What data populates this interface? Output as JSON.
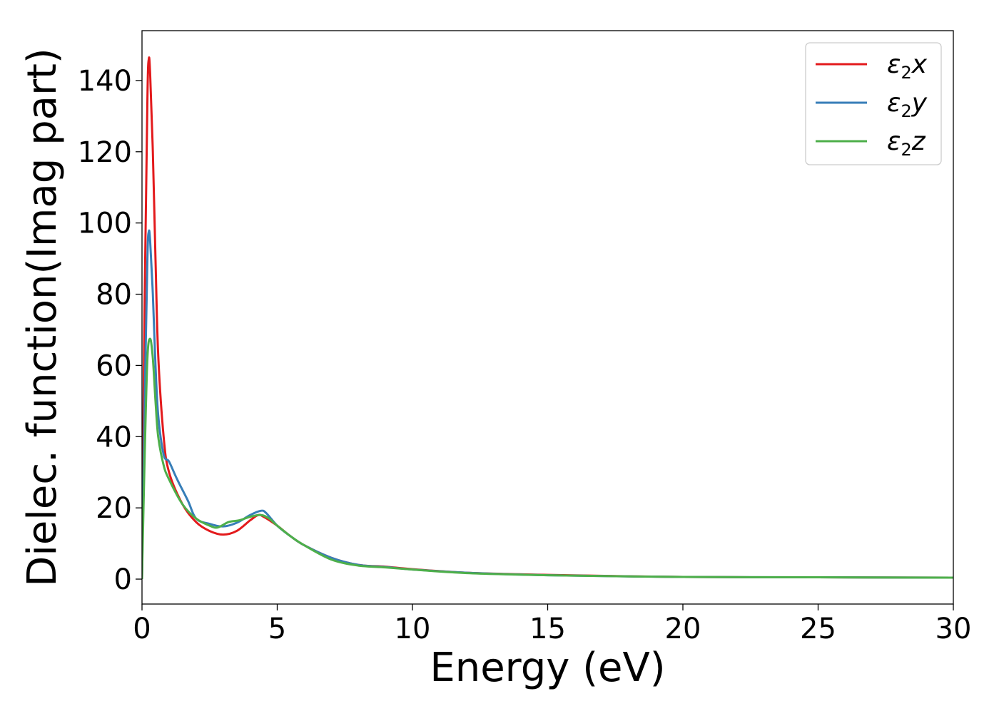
{
  "chart_data": {
    "type": "line",
    "title": "",
    "xlabel": "Energy (eV)",
    "ylabel": "Dielec. function(Imag part)",
    "xlim": [
      0,
      30
    ],
    "ylim": [
      -7,
      154
    ],
    "xticks": [
      0,
      5,
      10,
      15,
      20,
      25,
      30
    ],
    "xtick_labels": [
      "0",
      "5",
      "10",
      "15",
      "20",
      "25",
      "30"
    ],
    "yticks": [
      0,
      20,
      40,
      60,
      80,
      100,
      120,
      140
    ],
    "ytick_labels": [
      "0",
      "20",
      "40",
      "60",
      "80",
      "100",
      "120",
      "140"
    ],
    "grid": false,
    "legend_position": "top-right",
    "series": [
      {
        "name": "ε2x",
        "symbol": "ε",
        "subscript": "2",
        "axis": "x",
        "color": "#e31a1c",
        "points": [
          [
            0,
            0
          ],
          [
            0.1,
            80
          ],
          [
            0.2,
            135
          ],
          [
            0.25,
            146
          ],
          [
            0.3,
            142
          ],
          [
            0.4,
            120
          ],
          [
            0.5,
            90
          ],
          [
            0.6,
            63
          ],
          [
            0.8,
            40
          ],
          [
            1.0,
            30
          ],
          [
            1.5,
            21
          ],
          [
            2.0,
            16
          ],
          [
            2.5,
            13.5
          ],
          [
            3.0,
            12.5
          ],
          [
            3.5,
            13.5
          ],
          [
            4.0,
            16.5
          ],
          [
            4.3,
            18
          ],
          [
            4.5,
            17.5
          ],
          [
            5.0,
            15
          ],
          [
            5.5,
            12
          ],
          [
            6.0,
            9.5
          ],
          [
            7.0,
            6
          ],
          [
            8.0,
            4
          ],
          [
            9.0,
            3.5
          ],
          [
            10.0,
            2.8
          ],
          [
            12.0,
            1.8
          ],
          [
            15.0,
            1.2
          ],
          [
            20.0,
            0.6
          ],
          [
            25.0,
            0.5
          ],
          [
            30.0,
            0.4
          ]
        ]
      },
      {
        "name": "ε2y",
        "symbol": "ε",
        "subscript": "2",
        "axis": "y",
        "color": "#377eb8",
        "points": [
          [
            0,
            0
          ],
          [
            0.1,
            50
          ],
          [
            0.2,
            90
          ],
          [
            0.25,
            97.5
          ],
          [
            0.3,
            95
          ],
          [
            0.4,
            80
          ],
          [
            0.5,
            60
          ],
          [
            0.6,
            46
          ],
          [
            0.8,
            35
          ],
          [
            1.0,
            33
          ],
          [
            1.3,
            28
          ],
          [
            1.7,
            22
          ],
          [
            2.0,
            17
          ],
          [
            2.5,
            15.5
          ],
          [
            3.0,
            14.8
          ],
          [
            3.5,
            15.8
          ],
          [
            4.0,
            18
          ],
          [
            4.4,
            19.2
          ],
          [
            4.6,
            18.5
          ],
          [
            5.0,
            15
          ],
          [
            5.5,
            12
          ],
          [
            6.0,
            9.5
          ],
          [
            7.0,
            6
          ],
          [
            8.0,
            4
          ],
          [
            9.0,
            3.4
          ],
          [
            10.0,
            2.7
          ],
          [
            12.0,
            1.8
          ],
          [
            15.0,
            1.1
          ],
          [
            20.0,
            0.6
          ],
          [
            25.0,
            0.5
          ],
          [
            30.0,
            0.4
          ]
        ]
      },
      {
        "name": "ε2z",
        "symbol": "ε",
        "subscript": "2",
        "axis": "z",
        "color": "#4daf4a",
        "points": [
          [
            0,
            0
          ],
          [
            0.1,
            35
          ],
          [
            0.2,
            62
          ],
          [
            0.3,
            67.5
          ],
          [
            0.4,
            62
          ],
          [
            0.5,
            50
          ],
          [
            0.6,
            40
          ],
          [
            0.8,
            32
          ],
          [
            1.0,
            28
          ],
          [
            1.5,
            21
          ],
          [
            2.0,
            17
          ],
          [
            2.5,
            15
          ],
          [
            2.8,
            14.5
          ],
          [
            3.2,
            16
          ],
          [
            3.6,
            16.5
          ],
          [
            4.0,
            17.5
          ],
          [
            4.4,
            18
          ],
          [
            4.7,
            17
          ],
          [
            5.0,
            15
          ],
          [
            5.5,
            12
          ],
          [
            6.0,
            9.5
          ],
          [
            7.0,
            5.5
          ],
          [
            8.0,
            3.8
          ],
          [
            9.0,
            3.3
          ],
          [
            10.0,
            2.7
          ],
          [
            12.0,
            1.7
          ],
          [
            15.0,
            1.1
          ],
          [
            20.0,
            0.6
          ],
          [
            25.0,
            0.5
          ],
          [
            30.0,
            0.4
          ]
        ]
      }
    ]
  }
}
